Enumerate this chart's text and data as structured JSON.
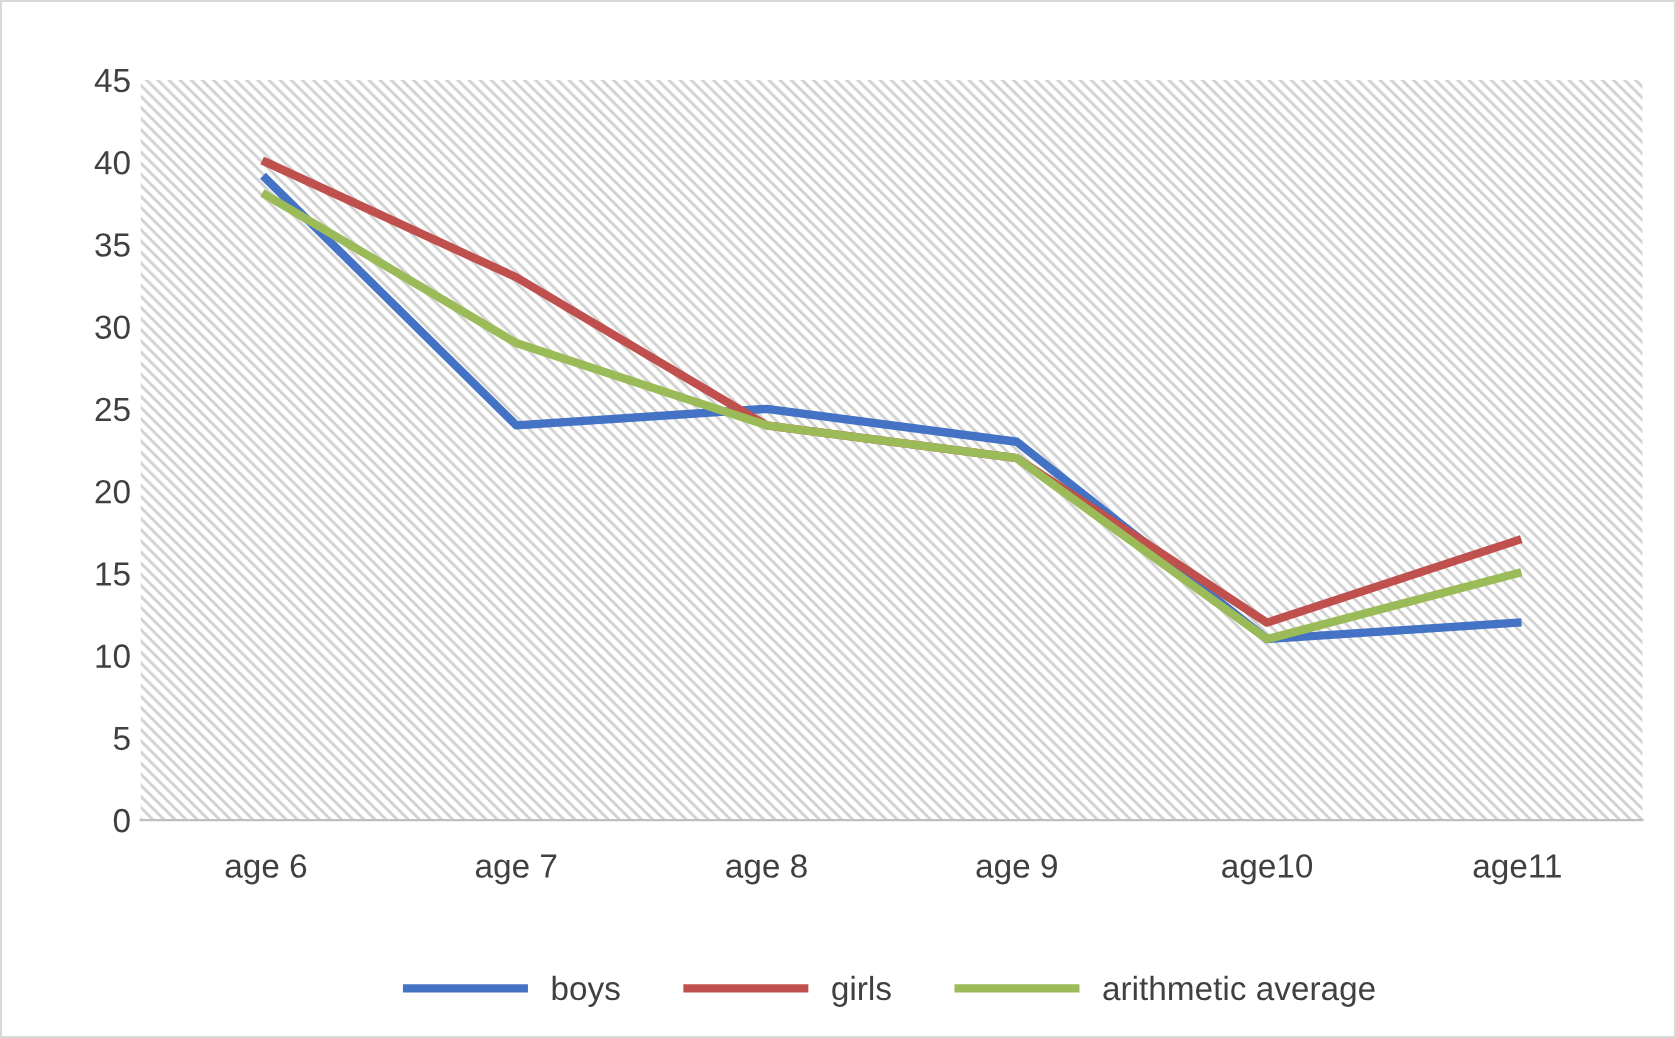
{
  "chart_data": {
    "type": "line",
    "categories": [
      "age 6",
      "age 7",
      "age 8",
      "age 9",
      "age10",
      "age11"
    ],
    "series": [
      {
        "name": "boys",
        "color": "#4472c4",
        "values": [
          39,
          24,
          25,
          23,
          11,
          12
        ]
      },
      {
        "name": "girls",
        "color": "#c0504d",
        "values": [
          40,
          33,
          24,
          22,
          12,
          17
        ]
      },
      {
        "name": "arithmetic average",
        "color": "#9bbb59",
        "values": [
          38,
          29,
          24,
          22,
          11,
          15
        ]
      }
    ],
    "ylim": [
      0,
      45
    ],
    "yticks": [
      0,
      5,
      10,
      15,
      20,
      25,
      30,
      35,
      40,
      45
    ],
    "grid": false,
    "legend": "bottom",
    "marker": "none",
    "line_style": "solid"
  }
}
